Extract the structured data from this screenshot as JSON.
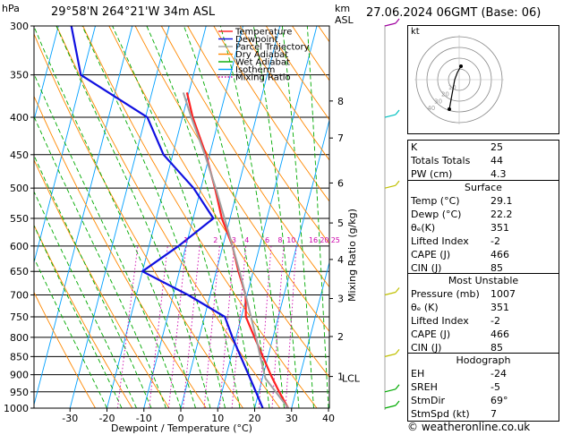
{
  "header": {
    "hpa_label": "hPa",
    "location": "29°58'N  264°21'W  34m  ASL",
    "km_label": "km",
    "asl_label": "ASL",
    "datetime": "27.06.2024  06GMT  (Base: 06)"
  },
  "legend": {
    "items": [
      {
        "label": "Temperature",
        "color": "#ff2020",
        "style": "solid"
      },
      {
        "label": "Dewpoint",
        "color": "#1010e0",
        "style": "solid"
      },
      {
        "label": "Parcel Trajectory",
        "color": "#a0a0a0",
        "style": "solid"
      },
      {
        "label": "Dry Adiabat",
        "color": "#ff8800",
        "style": "solid"
      },
      {
        "label": "Wet Adiabat",
        "color": "#00aa00",
        "style": "solid"
      },
      {
        "label": "Isotherm",
        "color": "#00a0ff",
        "style": "solid"
      },
      {
        "label": "Mixing Ratio",
        "color": "#cc00aa",
        "style": "dotted"
      }
    ]
  },
  "chart_data": {
    "type": "line",
    "title": "",
    "xlabel": "Dewpoint / Temperature (°C)",
    "ylabel": "hPa",
    "y2label": "Mixing Ratio (g/kg)",
    "xlim": [
      -35,
      40
    ],
    "ylim": [
      1000,
      300
    ],
    "x_ticks": [
      -30,
      -20,
      -10,
      0,
      10,
      20,
      30,
      40
    ],
    "pressure_levels": [
      300,
      350,
      400,
      450,
      500,
      550,
      600,
      650,
      700,
      750,
      800,
      850,
      900,
      950,
      1000
    ],
    "km_ticks": [
      {
        "label": "8",
        "p": 380
      },
      {
        "label": "7",
        "p": 427
      },
      {
        "label": "6",
        "p": 492
      },
      {
        "label": "5",
        "p": 558
      },
      {
        "label": "4",
        "p": 626
      },
      {
        "label": "3",
        "p": 708
      },
      {
        "label": "2",
        "p": 798
      },
      {
        "label": "1",
        "p": 905
      }
    ],
    "lcl": {
      "label": "LCL",
      "p": 910
    },
    "mixing_ratio_labels": [
      {
        "label": "1",
        "t": -10
      },
      {
        "label": "2",
        "t": -2
      },
      {
        "label": "3",
        "t": 3
      },
      {
        "label": "4",
        "t": 6.5
      },
      {
        "label": "6",
        "t": 12
      },
      {
        "label": "8",
        "t": 15.5
      },
      {
        "label": "10",
        "t": 18.5
      },
      {
        "label": "16",
        "t": 24.5
      },
      {
        "label": "20",
        "t": 27.5
      },
      {
        "label": "25",
        "t": 30.5
      }
    ],
    "series": [
      {
        "name": "Temperature",
        "color": "#ff2020",
        "points": [
          {
            "p": 1000,
            "t": 29.1
          },
          {
            "p": 950,
            "t": 25.5
          },
          {
            "p": 900,
            "t": 22.0
          },
          {
            "p": 850,
            "t": 18.6
          },
          {
            "p": 800,
            "t": 15.0
          },
          {
            "p": 750,
            "t": 11.2
          },
          {
            "p": 700,
            "t": 9.6
          },
          {
            "p": 650,
            "t": 6.0
          },
          {
            "p": 600,
            "t": 2.6
          },
          {
            "p": 550,
            "t": -2.2
          },
          {
            "p": 500,
            "t": -6.2
          },
          {
            "p": 450,
            "t": -11.0
          },
          {
            "p": 400,
            "t": -17.2
          },
          {
            "p": 370,
            "t": -20.5
          }
        ]
      },
      {
        "name": "Dewpoint",
        "color": "#1010e0",
        "points": [
          {
            "p": 1000,
            "t": 22.2
          },
          {
            "p": 950,
            "t": 19.2
          },
          {
            "p": 900,
            "t": 16.0
          },
          {
            "p": 850,
            "t": 12.6
          },
          {
            "p": 800,
            "t": 9.0
          },
          {
            "p": 750,
            "t": 5.5
          },
          {
            "p": 700,
            "t": -6.0
          },
          {
            "p": 650,
            "t": -20.0
          },
          {
            "p": 600,
            "t": -12.0
          },
          {
            "p": 550,
            "t": -4.5
          },
          {
            "p": 500,
            "t": -12.0
          },
          {
            "p": 450,
            "t": -22.5
          },
          {
            "p": 400,
            "t": -29.5
          },
          {
            "p": 350,
            "t": -50.5
          },
          {
            "p": 300,
            "t": -56.5
          }
        ]
      },
      {
        "name": "Parcel Trajectory",
        "color": "#a0a0a0",
        "points": [
          {
            "p": 1000,
            "t": 29.1
          },
          {
            "p": 910,
            "t": 20.8
          },
          {
            "p": 850,
            "t": 17.9
          },
          {
            "p": 800,
            "t": 15.4
          },
          {
            "p": 750,
            "t": 12.6
          },
          {
            "p": 700,
            "t": 9.6
          },
          {
            "p": 650,
            "t": 6.3
          },
          {
            "p": 600,
            "t": 2.6
          },
          {
            "p": 550,
            "t": -1.5
          },
          {
            "p": 500,
            "t": -6.0
          },
          {
            "p": 450,
            "t": -11.3
          },
          {
            "p": 400,
            "t": -17.6
          },
          {
            "p": 370,
            "t": -21.5
          }
        ]
      }
    ]
  },
  "hodograph": {
    "title": "kt",
    "rings": [
      "10",
      "20",
      "30",
      "40"
    ]
  },
  "indices": {
    "rows": [
      {
        "k": "K",
        "v": "25"
      },
      {
        "k": "Totals Totals",
        "v": "44"
      },
      {
        "k": "PW (cm)",
        "v": "4.3"
      }
    ]
  },
  "surface": {
    "title": "Surface",
    "rows": [
      {
        "k": "Temp (°C)",
        "v": "29.1"
      },
      {
        "k": "Dewp (°C)",
        "v": "22.2"
      },
      {
        "k": "θₑ(K)",
        "v": "351"
      },
      {
        "k": "Lifted Index",
        "v": "-2"
      },
      {
        "k": "CAPE (J)",
        "v": "466"
      },
      {
        "k": "CIN (J)",
        "v": "85"
      }
    ]
  },
  "most_unstable": {
    "title": "Most Unstable",
    "rows": [
      {
        "k": "Pressure (mb)",
        "v": "1007"
      },
      {
        "k": "θₑ (K)",
        "v": "351"
      },
      {
        "k": "Lifted Index",
        "v": "-2"
      },
      {
        "k": "CAPE (J)",
        "v": "466"
      },
      {
        "k": "CIN (J)",
        "v": "85"
      }
    ]
  },
  "hodograph_params": {
    "title": "Hodograph",
    "rows": [
      {
        "k": "EH",
        "v": "-24"
      },
      {
        "k": "SREH",
        "v": "-5"
      },
      {
        "k": "StmDir",
        "v": "69°"
      },
      {
        "k": "StmSpd (kt)",
        "v": "7"
      }
    ]
  },
  "footer": {
    "text": "© weatheronline.co.uk"
  }
}
